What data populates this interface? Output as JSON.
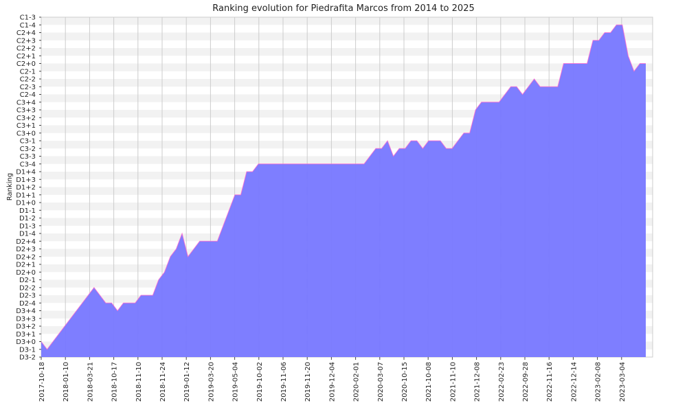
{
  "chart_data": {
    "type": "area",
    "title": "Ranking evolution for Piedrafita Marcos from 2014 to 2025",
    "xlabel": "",
    "ylabel": "Ranking",
    "y_categories": [
      "D3-2",
      "D3-1",
      "D3+0",
      "D3+1",
      "D3+2",
      "D3+3",
      "D3+4",
      "D2-4",
      "D2-3",
      "D2-2",
      "D2-1",
      "D2+0",
      "D2+1",
      "D2+2",
      "D2+3",
      "D2+4",
      "D1-4",
      "D1-3",
      "D1-2",
      "D1-1",
      "D1+0",
      "D1+1",
      "D1+2",
      "D1+3",
      "D1+4",
      "C3-4",
      "C3-3",
      "C3-2",
      "C3-1",
      "C3+0",
      "C3+1",
      "C3+2",
      "C3+3",
      "C3+4",
      "C2-4",
      "C2-3",
      "C2-2",
      "C2-1",
      "C2+0",
      "C2+1",
      "C2+2",
      "C2+3",
      "C2+4",
      "C1-4",
      "C1-3"
    ],
    "x_tick_labels": [
      "2017-10-18",
      "2018-01-10",
      "2018-03-21",
      "2018-10-17",
      "2018-11-10",
      "2018-11-24",
      "2019-01-12",
      "2019-03-20",
      "2019-05-04",
      "2019-10-02",
      "2019-11-06",
      "2019-11-20",
      "2019-12-04",
      "2020-02-01",
      "2020-03-07",
      "2020-10-15",
      "2021-10-08",
      "2021-11-10",
      "2021-12-08",
      "2022-02-23",
      "2022-09-28",
      "2022-11-16",
      "2022-12-14",
      "2023-02-08",
      "2023-03-04"
    ],
    "grid": true,
    "colors": {
      "fill": "#7777ff",
      "line": "#ff66cc",
      "band_light": "#f2f2f2",
      "band_white": "#ffffff",
      "grid": "#cccccc"
    },
    "series": [
      {
        "values": [
          "D3+0",
          "D3-1",
          "D3+0",
          "D3+1",
          "D3+2",
          "D3+3",
          "D3+4",
          "D2-4",
          "D2-3",
          "D2-2",
          "D2-3",
          "D2-4",
          "D2-4",
          "D3+4",
          "D2-4",
          "D2-4",
          "D2-4",
          "D2-3",
          "D2-3",
          "D2-3",
          "D2-1",
          "D2+0",
          "D2+2",
          "D2+3",
          "D1-4",
          "D2+2",
          "D2+3",
          "D2+4",
          "D2+4",
          "D2+4",
          "D2+4",
          "D1-3",
          "D1-1",
          "D1+1",
          "D1+1",
          "D1+4",
          "D1+4",
          "C3-4",
          "C3-4",
          "C3-4",
          "C3-4",
          "C3-4",
          "C3-4",
          "C3-4",
          "C3-4",
          "C3-4",
          "C3-4",
          "C3-4",
          "C3-4",
          "C3-4",
          "C3-4",
          "C3-4",
          "C3-4",
          "C3-4",
          "C3-4",
          "C3-4",
          "C3-3",
          "C3-2",
          "C3-2",
          "C3-1",
          "C3-3",
          "C3-2",
          "C3-2",
          "C3-1",
          "C3-1",
          "C3-2",
          "C3-1",
          "C3-1",
          "C3-1",
          "C3-2",
          "C3-2",
          "C3-1",
          "C3+0",
          "C3+0",
          "C3+3",
          "C3+4",
          "C3+4",
          "C3+4",
          "C3+4",
          "C2-4",
          "C2-3",
          "C2-3",
          "C2-4",
          "C2-3",
          "C2-2",
          "C2-3",
          "C2-3",
          "C2-3",
          "C2-3",
          "C2+0",
          "C2+0",
          "C2+0",
          "C2+0",
          "C2+0",
          "C2+3",
          "C2+3",
          "C2+4",
          "C2+4",
          "C1-4",
          "C1-4",
          "C2+1",
          "C2-1",
          "C2+0",
          "C2+0"
        ]
      }
    ]
  }
}
